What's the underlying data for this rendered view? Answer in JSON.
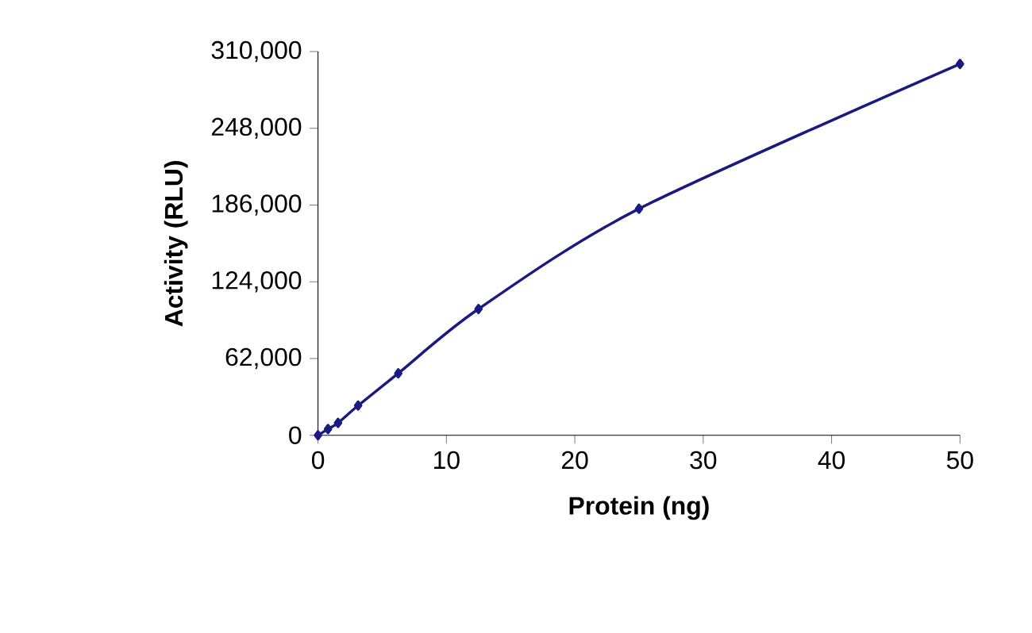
{
  "chart_data": {
    "type": "line",
    "xlabel": "Protein (ng)",
    "ylabel": "Activity (RLU)",
    "x": [
      0,
      0.78,
      1.56,
      3.125,
      6.25,
      12.5,
      25,
      50
    ],
    "series": [
      {
        "color": "#1a1a80",
        "values": [
          0,
          5000,
          10000,
          24000,
          50000,
          102000,
          183000,
          300000
        ]
      }
    ],
    "xlim": [
      0,
      50
    ],
    "xticks": [
      0,
      10,
      20,
      30,
      40,
      50
    ],
    "ylim": [
      0,
      310000
    ],
    "yticks": [
      {
        "value": 0,
        "label": "0"
      },
      {
        "value": 62000,
        "label": "62,000"
      },
      {
        "value": 124000,
        "label": "124,000"
      },
      {
        "value": 186000,
        "label": "186,000"
      },
      {
        "value": 248000,
        "label": "248,000"
      },
      {
        "value": 310000,
        "label": "310,000"
      }
    ],
    "marker": "diamond",
    "line_style": "solid",
    "grid": false
  }
}
